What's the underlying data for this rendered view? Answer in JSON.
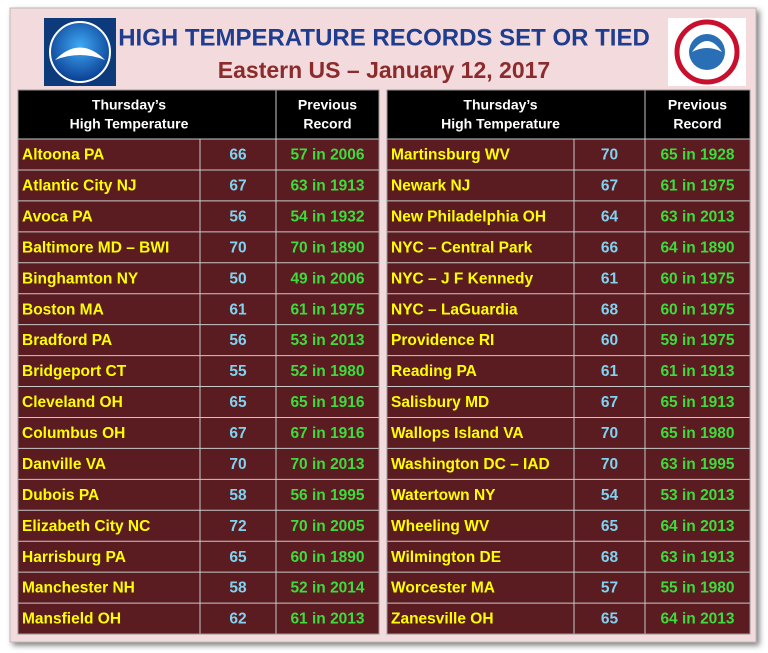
{
  "header": {
    "title": "HIGH TEMPERATURE RECORDS  SET OR TIED",
    "subtitle": "Eastern US – January 12, 2017"
  },
  "tables": [
    {
      "header": [
        [
          "Thursday’s",
          "High Temperature"
        ],
        [
          "Previous",
          "Record"
        ]
      ],
      "rows": [
        [
          "Altoona PA",
          66,
          "57 in 2006"
        ],
        [
          "Atlantic City NJ",
          67,
          "63 in 1913"
        ],
        [
          "Avoca PA",
          56,
          "54 in 1932"
        ],
        [
          "Baltimore MD – BWI",
          70,
          "70 in 1890"
        ],
        [
          "Binghamton NY",
          50,
          "49 in 2006"
        ],
        [
          "Boston MA",
          61,
          "61 in 1975"
        ],
        [
          "Bradford PA",
          56,
          "53 in 2013"
        ],
        [
          "Bridgeport CT",
          55,
          "52 in 1980"
        ],
        [
          "Cleveland OH",
          65,
          "65 in 1916"
        ],
        [
          "Columbus OH",
          67,
          "67 in 1916"
        ],
        [
          "Danville VA",
          70,
          "70 in 2013"
        ],
        [
          "Dubois  PA",
          58,
          "56 in 1995"
        ],
        [
          "Elizabeth City NC",
          72,
          "70 in 2005"
        ],
        [
          "Harrisburg  PA",
          65,
          "60 in 1890"
        ],
        [
          "Manchester NH",
          58,
          "52 in 2014"
        ],
        [
          "Mansfield OH",
          62,
          "61 in 2013"
        ]
      ]
    },
    {
      "header": [
        [
          "Thursday’s",
          "High Temperature"
        ],
        [
          "Previous",
          "Record"
        ]
      ],
      "rows": [
        [
          "Martinsburg WV",
          70,
          "65 in 1928"
        ],
        [
          "Newark NJ",
          67,
          "61 in 1975"
        ],
        [
          "New Philadelphia OH",
          64,
          "63 in 2013"
        ],
        [
          "NYC – Central Park",
          66,
          "64 in 1890"
        ],
        [
          "NYC – J F Kennedy",
          61,
          "60 in 1975"
        ],
        [
          "NYC – LaGuardia",
          68,
          "60 in 1975"
        ],
        [
          "Providence RI",
          60,
          "59 in 1975"
        ],
        [
          "Reading PA",
          61,
          "61 in 1913"
        ],
        [
          "Salisbury MD",
          67,
          "65 in 1913"
        ],
        [
          "Wallops Island VA",
          70,
          "65 in 1980"
        ],
        [
          "Washington DC – IAD",
          70,
          "63 in 1995"
        ],
        [
          "Watertown NY",
          54,
          "53 in 2013"
        ],
        [
          "Wheeling WV",
          65,
          "64 in 2013"
        ],
        [
          "Wilmington DE",
          68,
          "63 in 1913"
        ],
        [
          "Worcester MA",
          57,
          "55 in 1980"
        ],
        [
          "Zanesville OH",
          65,
          "64 in 2013"
        ]
      ]
    }
  ]
}
